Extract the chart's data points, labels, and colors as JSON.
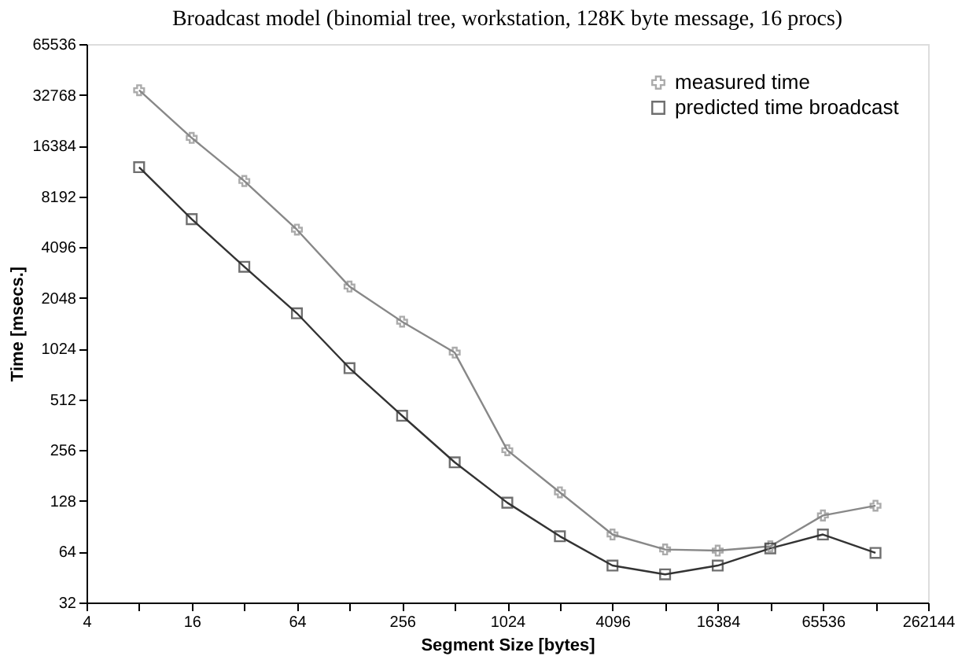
{
  "chart_data": {
    "type": "line",
    "title": "Broadcast model (binomial tree, workstation, 128K byte message, 16 procs)",
    "xlabel": "Segment Size [bytes]",
    "ylabel": "Time [msecs.]",
    "x": [
      8,
      16,
      32,
      64,
      128,
      256,
      512,
      1024,
      2048,
      4096,
      8192,
      16384,
      32768,
      65536,
      131072
    ],
    "series": [
      {
        "name": "measured time",
        "color": "#888888",
        "marker": "cross",
        "values": [
          34900,
          18200,
          10100,
          5200,
          2390,
          1480,
          970,
          256,
          144,
          81,
          66,
          65,
          69,
          105,
          120
        ]
      },
      {
        "name": "predicted time broadcast",
        "color": "#333333",
        "marker": "square",
        "values": [
          12200,
          6000,
          3130,
          1660,
          785,
          410,
          217,
          125,
          79,
          53,
          47,
          53,
          67,
          81,
          63
        ]
      }
    ],
    "log": "xy",
    "xlim": [
      4,
      262144
    ],
    "ylim": [
      32,
      65536
    ],
    "xticks": [
      4,
      {
        "value": 8,
        "label": null
      },
      16,
      {
        "value": 32,
        "label": null
      },
      64,
      {
        "value": 128,
        "label": null
      },
      256,
      {
        "value": 512,
        "label": null
      },
      1024,
      {
        "value": 2048,
        "label": null
      },
      4096,
      {
        "value": 8192,
        "label": null
      },
      16384,
      {
        "value": 32768,
        "label": null
      },
      65536,
      {
        "value": 131072,
        "label": null
      },
      262144
    ],
    "yticks": [
      32,
      64,
      128,
      256,
      512,
      1024,
      2048,
      4096,
      8192,
      16384,
      32768,
      65536
    ],
    "grid": false,
    "legend": "top right",
    "line_style": "solid"
  }
}
